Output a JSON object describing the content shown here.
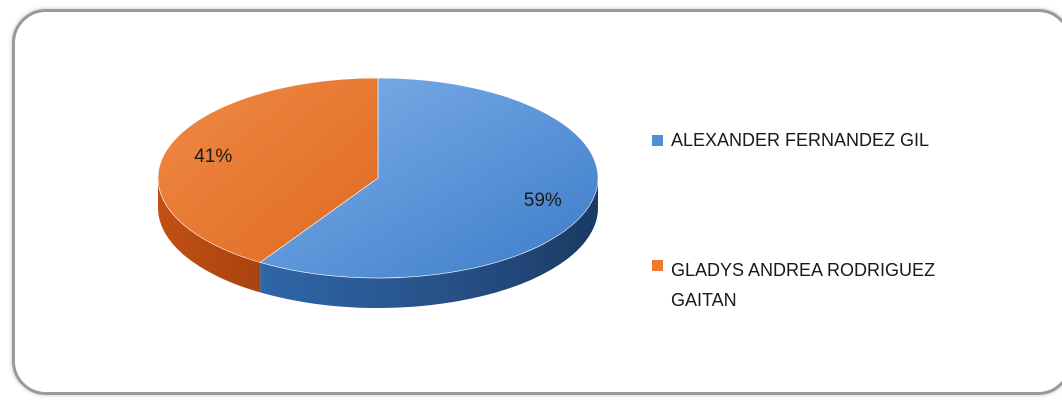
{
  "chart_data": {
    "type": "pie",
    "style": "3d",
    "title": "",
    "slices": [
      {
        "label": "ALEXANDER FERNANDEZ GIL",
        "value": 59,
        "value_label": "59%",
        "color": "#4f8fd6"
      },
      {
        "label": "GLADYS ANDREA RODRIGUEZ GAITAN",
        "value": 41,
        "value_label": "41%",
        "color": "#ee7a30"
      }
    ],
    "legend_position": "right"
  }
}
